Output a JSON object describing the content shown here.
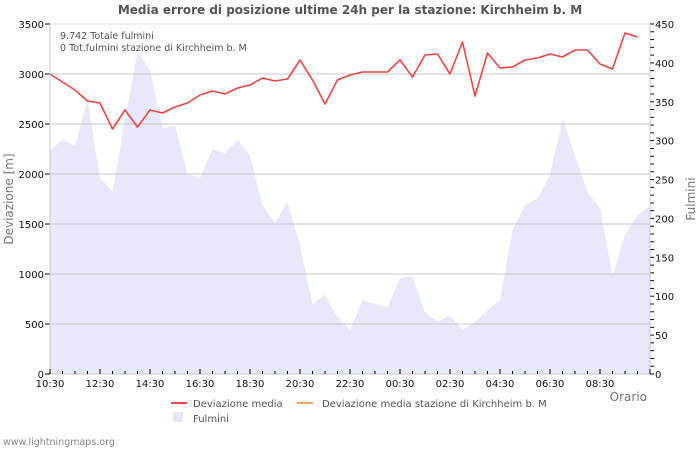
{
  "chart_data": {
    "type": "line+area",
    "title": "Media errore di posizione ultime 24h per la stazione: Kirchheim b. M",
    "xlabel": "Orario",
    "ylabel_left": "Deviazione  [m]",
    "ylabel_right": "Fulmini",
    "ylim_left": [
      0,
      3500
    ],
    "ylim_right": [
      0,
      450
    ],
    "left_ticks": [
      0,
      500,
      1000,
      1500,
      2000,
      2500,
      3000,
      3500
    ],
    "right_ticks": [
      0,
      50,
      100,
      150,
      200,
      250,
      300,
      350,
      400,
      450
    ],
    "x_tick_labels": [
      "10:30",
      "12:30",
      "14:30",
      "16:30",
      "18:30",
      "20:30",
      "22:30",
      "00:30",
      "02:30",
      "04:30",
      "06:30",
      "08:30"
    ],
    "x_interval_minutes": 30,
    "grid": true,
    "info_lines": [
      "9.742 Totale fulmini",
      "0 Tot.fulmini stazione di Kirchheim b. M"
    ],
    "legend": [
      {
        "label": "Deviazione media",
        "color": "#ee4444",
        "kind": "line"
      },
      {
        "label": "Deviazione media stazione di Kirchheim b. M",
        "color": "#f4a460",
        "kind": "line"
      },
      {
        "label": "Fulmini",
        "color": "#e8e8fb",
        "kind": "area"
      }
    ],
    "series": [
      {
        "name": "Deviazione media",
        "axis": "left",
        "color": "#ee4444",
        "values": [
          3000,
          2920,
          2840,
          2730,
          2710,
          2450,
          2640,
          2470,
          2640,
          2610,
          2670,
          2710,
          2790,
          2830,
          2800,
          2860,
          2890,
          2960,
          2930,
          2950,
          3140,
          2940,
          2700,
          2940,
          2990,
          3020,
          3020,
          3020,
          3140,
          2970,
          3190,
          3200,
          3000,
          3320,
          2780,
          3210,
          3060,
          3070,
          3140,
          3160,
          3200,
          3170,
          3240,
          3240,
          3100,
          3050,
          3410,
          3370
        ]
      },
      {
        "name": "Deviazione media stazione di Kirchheim b. M",
        "axis": "left",
        "color": "#f4a460",
        "values": []
      },
      {
        "name": "Fulmini",
        "axis": "right",
        "color": "#e8e8fb",
        "values": [
          288,
          301,
          294,
          352,
          252,
          235,
          326,
          414,
          391,
          316,
          319,
          257,
          252,
          289,
          284,
          301,
          281,
          217,
          195,
          221,
          166,
          89,
          102,
          73,
          57,
          95,
          90,
          86,
          123,
          126,
          79,
          68,
          75,
          57,
          67,
          82,
          95,
          185,
          217,
          226,
          256,
          329,
          281,
          234,
          213,
          127,
          179,
          204,
          217
        ]
      }
    ]
  },
  "footer": {
    "site": "www.lightningmaps.org"
  }
}
